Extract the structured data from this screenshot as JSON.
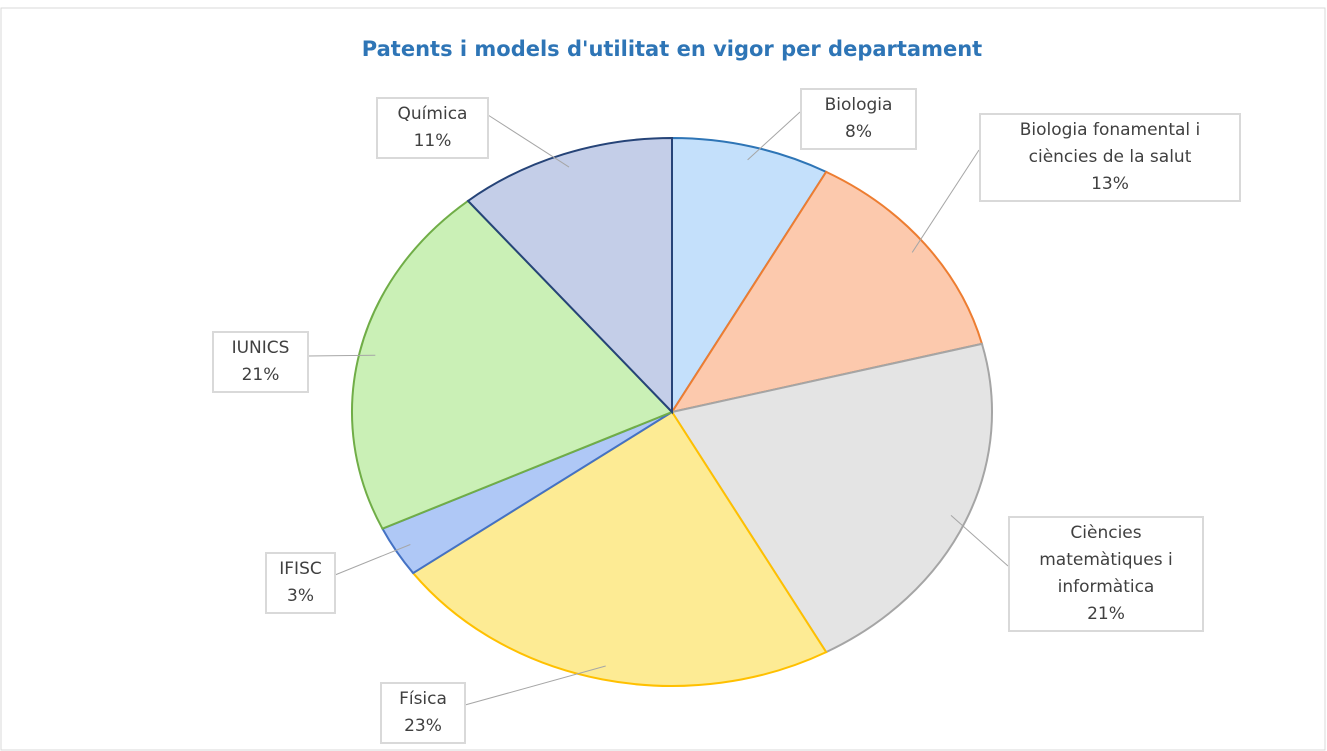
{
  "chart_data": {
    "type": "pie",
    "title": "Patents i models d'utilitat en vigor per departament",
    "categories": [
      "Biologia",
      "Biologia fonamental i ciències de la salut",
      "Ciències matemàtiques i informàtica",
      "Física",
      "IFISC",
      "IUNICS",
      "Química"
    ],
    "values": [
      8,
      13,
      21,
      23,
      3,
      21,
      11
    ],
    "value_labels": [
      "8%",
      "13%",
      "21%",
      "23%",
      "3%",
      "21%",
      "11%"
    ],
    "colors": [
      "#c4e0fb",
      "#fcc9ad",
      "#e4e4e4",
      "#fdeb94",
      "#afc8f6",
      "#caf0b6",
      "#c4cee8"
    ],
    "edge_colors": [
      "#2e75b6",
      "#ed7d31",
      "#a5a5a5",
      "#ffc000",
      "#4472c4",
      "#70ad47",
      "#264478"
    ]
  }
}
